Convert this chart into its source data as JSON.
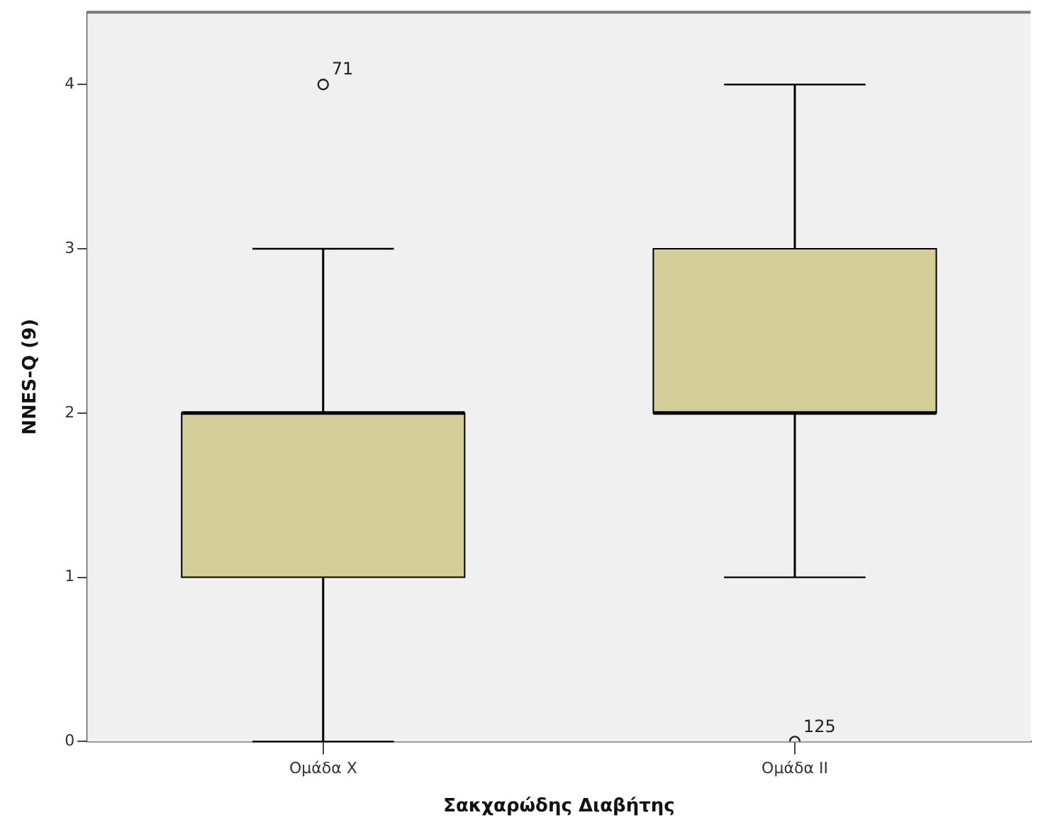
{
  "chart_data": {
    "type": "box",
    "xlabel": "Σακχαρώδης Διαβήτης",
    "ylabel": "NNES-Q (9)",
    "categories": [
      "Ομάδα X",
      "Ομάδα II"
    ],
    "boxes": [
      {
        "low": 0,
        "q1": 1,
        "median": 2,
        "q3": 2,
        "high": 3,
        "outliers": [
          4
        ]
      },
      {
        "low": 1,
        "q1": 2,
        "median": 2,
        "q3": 3,
        "high": 4,
        "outliers": [
          0
        ]
      }
    ],
    "color": "#d3ce97",
    "marker": "circle",
    "ylim": [
      0,
      4.44
    ],
    "yticks": [
      0,
      1,
      2,
      3,
      4
    ],
    "annotations": [
      "71",
      "125"
    ]
  }
}
